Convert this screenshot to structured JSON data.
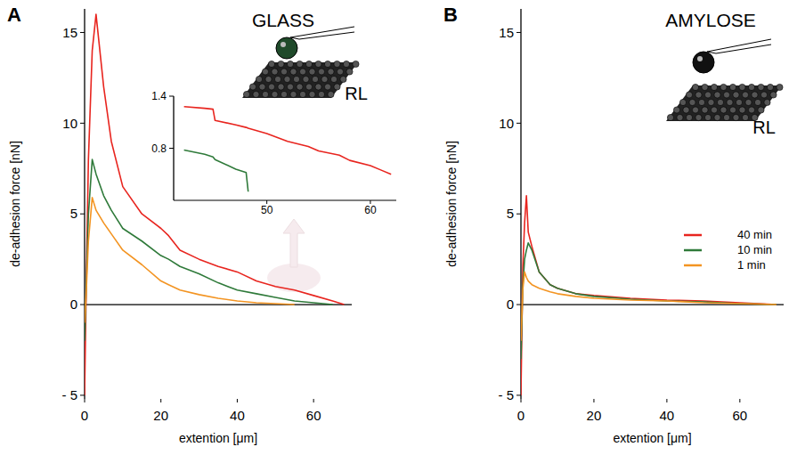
{
  "chart_data": [
    {
      "type": "line",
      "panel_label": "A",
      "annotations": [
        "GLASS",
        "RL"
      ],
      "x_label": "extention [μm]",
      "y_label": "de-adhesion force [nN]",
      "xlim": [
        0,
        70
      ],
      "ylim": [
        -5.2,
        16.3
      ],
      "xticks": [
        0,
        20,
        40,
        60
      ],
      "yticks": [
        {
          "value": -5,
          "label": "- 5"
        },
        0,
        5,
        10,
        15
      ],
      "x": [
        0,
        0.5,
        1,
        2,
        3,
        5,
        7,
        10,
        15,
        20,
        22,
        25,
        30,
        35,
        40,
        45,
        50,
        55,
        60,
        65,
        68
      ],
      "series": [
        {
          "color": "#e8251f",
          "values": [
            -5,
            2,
            8,
            14,
            16,
            12,
            9,
            6.5,
            5,
            4.2,
            3.8,
            3,
            2.5,
            2.1,
            1.8,
            1.3,
            1.0,
            0.8,
            0.5,
            0.2,
            0
          ]
        },
        {
          "color": "#2f7a3a",
          "values": [
            -2,
            1.5,
            5,
            8,
            7.2,
            6,
            5.2,
            4.2,
            3.5,
            2.7,
            2.5,
            2.1,
            1.7,
            1.2,
            0.8,
            0.6,
            0.4,
            0.2,
            0.1,
            0,
            null
          ]
        },
        {
          "color": "#f39422",
          "values": [
            -1,
            1,
            3.5,
            5.9,
            5.2,
            4.5,
            3.9,
            3,
            2.2,
            1.3,
            1.1,
            0.8,
            0.55,
            0.35,
            0.2,
            0.1,
            0.05,
            0,
            null,
            null,
            null
          ]
        }
      ]
    },
    {
      "type": "line",
      "xlim": [
        41,
        62.5
      ],
      "ylim": [
        0.2,
        1.4
      ],
      "xticks": [
        50,
        60
      ],
      "yticks": [
        0.8,
        1.4
      ],
      "x": [
        42,
        44,
        44.8,
        45,
        47,
        48,
        48.2,
        50,
        52,
        54,
        55,
        57,
        58,
        60,
        61,
        62
      ],
      "series": [
        {
          "color": "#e8251f",
          "values": [
            1.28,
            1.26,
            1.25,
            1.12,
            1.07,
            1.04,
            1.03,
            0.97,
            0.88,
            0.82,
            0.77,
            0.72,
            0.66,
            0.6,
            0.55,
            0.5
          ]
        },
        {
          "color": "#2f7a3a",
          "values": [
            0.78,
            0.73,
            0.7,
            0.67,
            0.56,
            0.52,
            0.3,
            null,
            null,
            null,
            null,
            null,
            null,
            null,
            null,
            null
          ]
        }
      ]
    },
    {
      "type": "line",
      "panel_label": "B",
      "annotations": [
        "AMYLOSE",
        "RL"
      ],
      "x_label": "extention [μm]",
      "y_label": "de-adhesion force [nN]",
      "xlim": [
        0,
        72
      ],
      "ylim": [
        -5.2,
        16.3
      ],
      "xticks": [
        0,
        20,
        40,
        60
      ],
      "yticks": [
        {
          "value": -5,
          "label": "- 5"
        },
        0,
        5,
        10,
        15
      ],
      "legend": "right",
      "x": [
        0,
        0.5,
        1,
        1.5,
        2,
        3,
        5,
        8,
        10,
        15,
        20,
        30,
        40,
        50,
        60,
        70
      ],
      "series": [
        {
          "name": "40 min",
          "color": "#e8251f",
          "values": [
            -5,
            2,
            4.5,
            6,
            4,
            3.2,
            1.8,
            1.1,
            0.9,
            0.6,
            0.5,
            0.35,
            0.25,
            0.2,
            0.1,
            0
          ]
        },
        {
          "name": "10 min",
          "color": "#2f7a3a",
          "values": [
            -3,
            1,
            2.5,
            3,
            3.4,
            3,
            1.8,
            1.1,
            0.9,
            0.6,
            0.45,
            0.3,
            0.2,
            0.15,
            0.05,
            0
          ]
        },
        {
          "name": "1 min",
          "color": "#f39422",
          "values": [
            -2,
            0.8,
            1.8,
            1.5,
            1.3,
            1.1,
            0.9,
            0.7,
            0.6,
            0.45,
            0.35,
            0.25,
            0.2,
            0.1,
            0.05,
            0
          ]
        }
      ]
    }
  ]
}
